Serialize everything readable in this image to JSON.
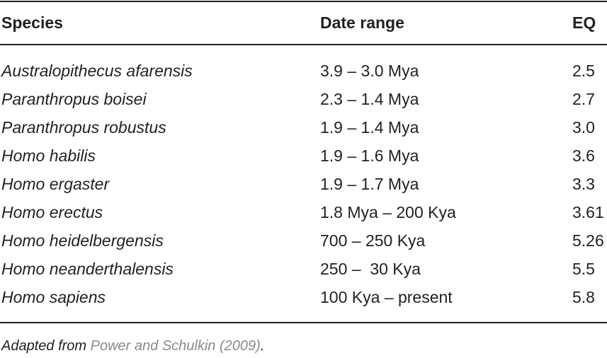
{
  "table": {
    "header": [
      "Species",
      "Date range",
      "EQ"
    ],
    "rows": [
      [
        "Australopithecus afarensis",
        "3.9 – 3.0 Mya",
        "2.5"
      ],
      [
        "Paranthropus boisei",
        "2.3 – 1.4 Mya",
        "2.7"
      ],
      [
        "Paranthropus robustus",
        "1.9 – 1.4 Mya",
        "3.0"
      ],
      [
        "Homo habilis",
        "1.9 – 1.6 Mya",
        "3.6"
      ],
      [
        "Homo ergaster",
        "1.9 – 1.7 Mya",
        "3.3"
      ],
      [
        "Homo erectus",
        "1.8 Mya – 200 Kya",
        "3.61"
      ],
      [
        "Homo heidelbergensis",
        "700 – 250 Kya",
        "5.26"
      ],
      [
        "Homo neanderthalensis",
        "250 –  30 Kya",
        "5.5"
      ],
      [
        "Homo sapiens",
        "100 Kya – present",
        "5.8"
      ]
    ]
  },
  "footnote": {
    "prefix": "Adapted from",
    "link": "Power and Schulkin (2009)",
    "suffix": "."
  }
}
